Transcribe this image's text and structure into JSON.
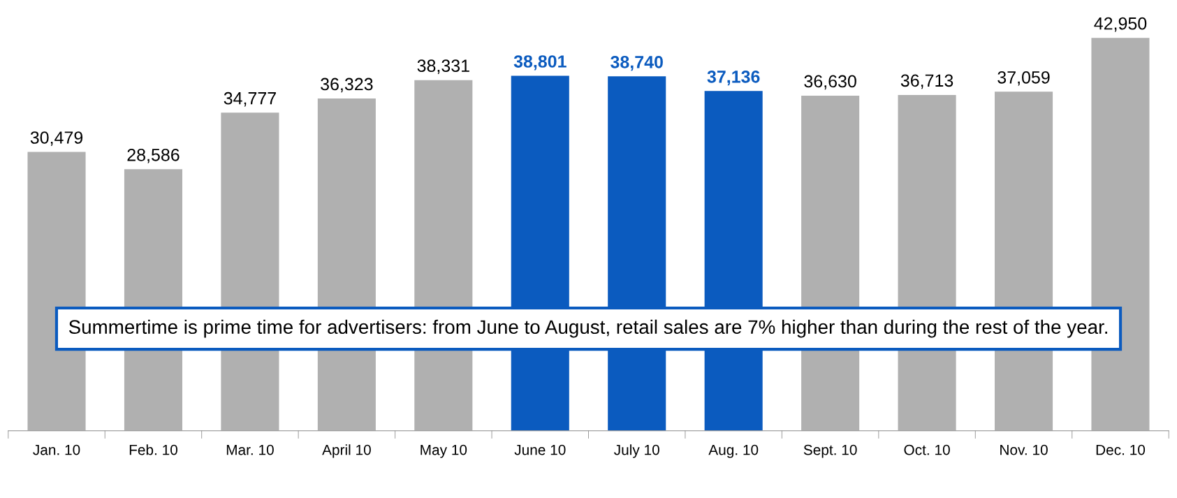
{
  "chart_data": {
    "type": "bar",
    "categories": [
      "Jan. 10",
      "Feb. 10",
      "Mar. 10",
      "April 10",
      "May 10",
      "June 10",
      "July 10",
      "Aug. 10",
      "Sept. 10",
      "Oct. 10",
      "Nov. 10",
      "Dec. 10"
    ],
    "values": [
      30479,
      28586,
      34777,
      36323,
      38331,
      38801,
      38740,
      37136,
      36630,
      36713,
      37059,
      42950
    ],
    "colors": [
      "#b0b0b0",
      "#b0b0b0",
      "#b0b0b0",
      "#b0b0b0",
      "#b0b0b0",
      "#0b5bbf",
      "#0b5bbf",
      "#0b5bbf",
      "#b0b0b0",
      "#b0b0b0",
      "#b0b0b0",
      "#b0b0b0"
    ],
    "value_labels": [
      "30,479",
      "28,586",
      "34,777",
      "36,323",
      "38,331",
      "38,801",
      "38,740",
      "37,136",
      "36,630",
      "36,713",
      "37,059",
      "42,950"
    ],
    "annotations": [
      "Summertime is prime time for advertisers: from June to August, retail sales are 7% higher than during the rest of the year."
    ],
    "grid": false,
    "legend": false
  }
}
